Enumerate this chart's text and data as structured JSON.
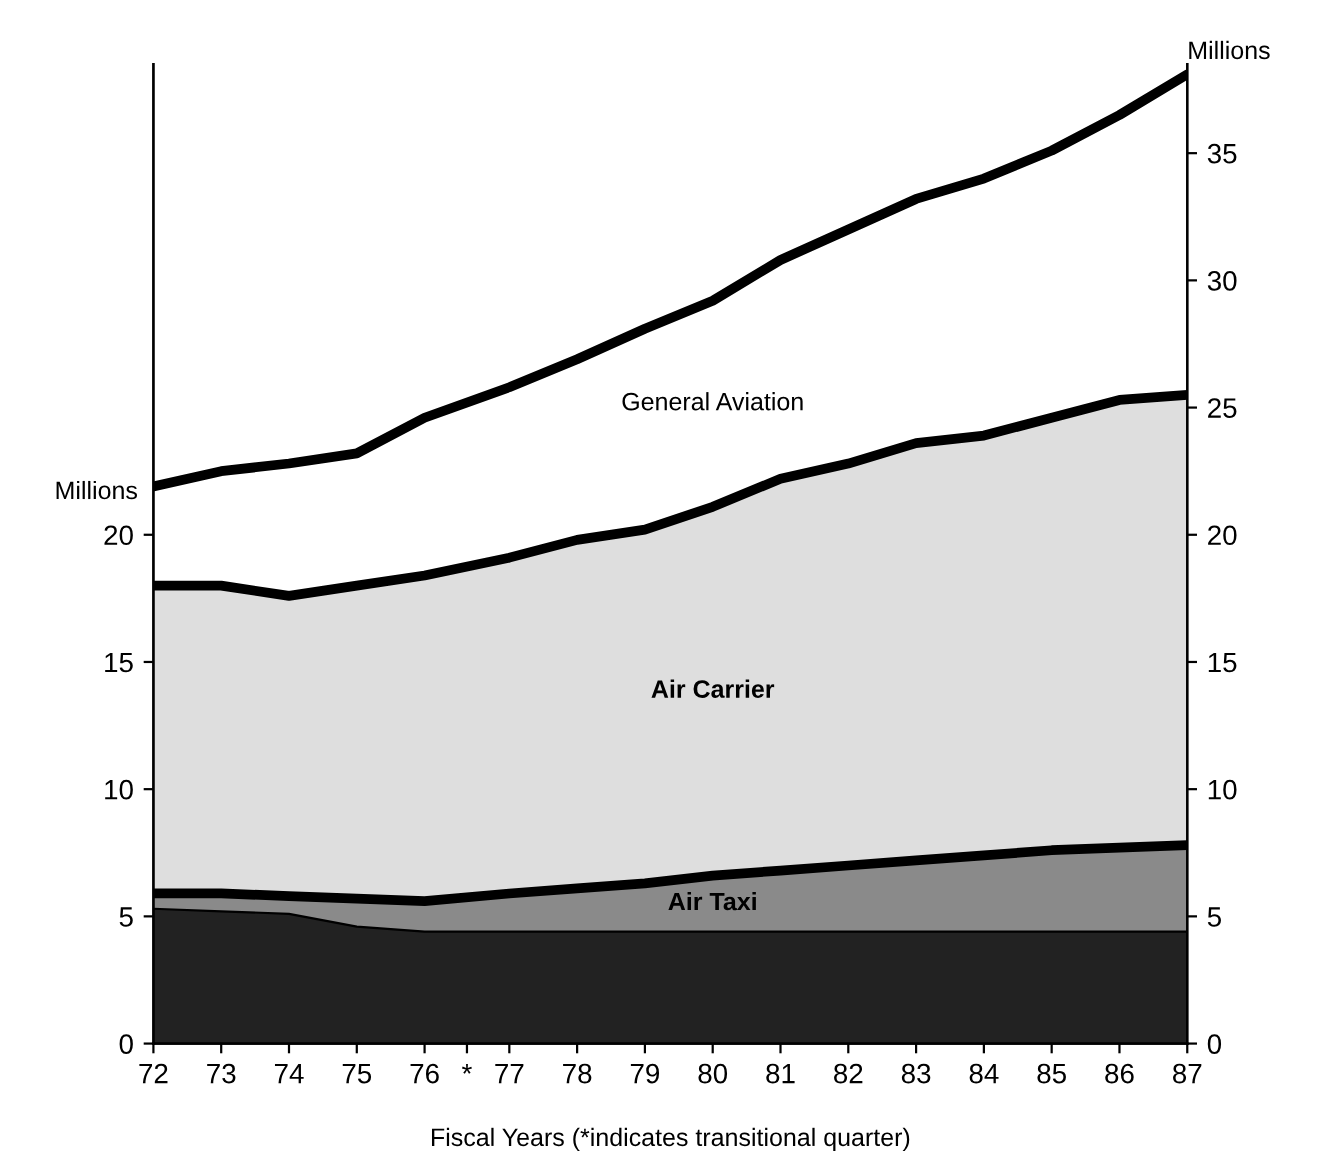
{
  "chart_data": {
    "type": "area",
    "stacked": true,
    "legend": false,
    "grid": false,
    "xlabel": "Fiscal Years (*indicates transitional quarter)",
    "ylabel": "Millions",
    "y2label": "Millions",
    "x": [
      72,
      73,
      74,
      75,
      76,
      77.25,
      78.25,
      79.25,
      80.25,
      81.25,
      82.25,
      83.25,
      84.25,
      85.25,
      86.25,
      87.25
    ],
    "xlim": [
      72,
      87.25
    ],
    "xticks": [
      72,
      73,
      74,
      75,
      76,
      {
        "value": 76.625,
        "label": "*"
      },
      {
        "value": 77.25,
        "label": "77"
      },
      {
        "value": 78.25,
        "label": "78"
      },
      {
        "value": 79.25,
        "label": "79"
      },
      {
        "value": 80.25,
        "label": "80"
      },
      {
        "value": 81.25,
        "label": "81"
      },
      {
        "value": 82.25,
        "label": "82"
      },
      {
        "value": 83.25,
        "label": "83"
      },
      {
        "value": 84.25,
        "label": "84"
      },
      {
        "value": 85.25,
        "label": "85"
      },
      {
        "value": 86.25,
        "label": "86"
      },
      {
        "value": 87.25,
        "label": "87"
      }
    ],
    "ylim": [
      0,
      38.5
    ],
    "yticks": [
      0,
      5,
      10,
      15,
      20
    ],
    "y2lim": [
      0,
      38.5
    ],
    "y2ticks": [
      0,
      5,
      10,
      15,
      20,
      25,
      30,
      35
    ],
    "series": [
      {
        "color": "#222222",
        "values": [
          5.3,
          5.2,
          5.1,
          4.6,
          4.4,
          4.4,
          4.4,
          4.4,
          4.4,
          4.4,
          4.4,
          4.4,
          4.4,
          4.4,
          4.4,
          4.4
        ]
      },
      {
        "name": "Air Taxi",
        "color": "#8a8a8a",
        "values": [
          0.6,
          0.7,
          0.7,
          1.1,
          1.2,
          1.5,
          1.7,
          1.9,
          2.2,
          2.4,
          2.6,
          2.8,
          3.0,
          3.2,
          3.3,
          3.4
        ]
      },
      {
        "name": "Air Carrier",
        "color": "#dedede",
        "values": [
          12.1,
          12.1,
          11.8,
          12.3,
          12.8,
          13.2,
          13.7,
          13.9,
          14.5,
          15.4,
          15.8,
          16.4,
          16.5,
          17.0,
          17.6,
          17.7
        ]
      },
      {
        "name": "General Aviation",
        "color": "#ffffff",
        "values": [
          3.9,
          4.5,
          5.2,
          5.2,
          6.2,
          6.7,
          7.1,
          7.9,
          8.1,
          8.6,
          9.2,
          9.6,
          10.1,
          10.5,
          11.2,
          12.6
        ]
      }
    ]
  }
}
